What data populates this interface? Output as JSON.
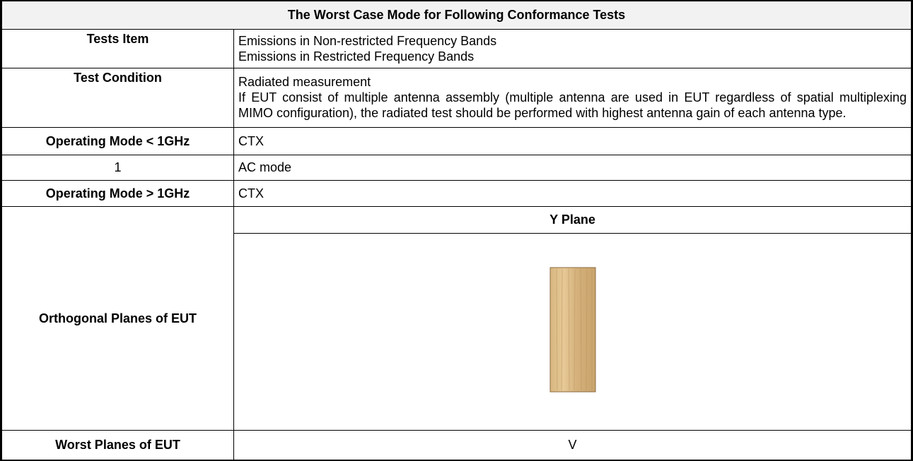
{
  "table": {
    "title": "The Worst Case Mode for Following Conformance Tests",
    "rows": [
      {
        "label": "Tests Item",
        "lines": [
          "Emissions in Non-restricted Frequency Bands",
          "Emissions in Restricted Frequency Bands"
        ]
      },
      {
        "label": "Test Condition",
        "lines": [
          "Radiated measurement",
          "If EUT consist of multiple antenna assembly (multiple antenna are used in EUT regardless of spatial multiplexing MIMO configuration), the radiated test should be performed with highest antenna gain of each antenna type."
        ]
      },
      {
        "label": "Operating Mode < 1GHz",
        "value": "CTX"
      },
      {
        "label": "1",
        "value": "AC mode"
      },
      {
        "label": "Operating Mode > 1GHz",
        "value": "CTX"
      },
      {
        "label": "Orthogonal Planes of EUT",
        "plane": "Y Plane"
      },
      {
        "label": "Worst Planes of EUT",
        "value": "V"
      }
    ]
  }
}
